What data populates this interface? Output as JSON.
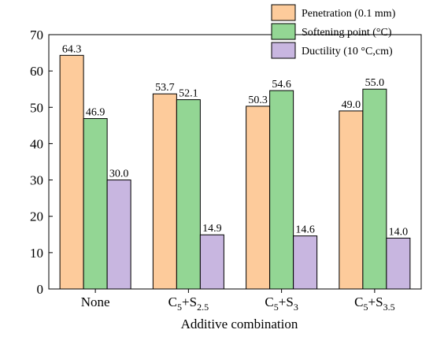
{
  "chart_data": {
    "type": "bar",
    "title": "",
    "xlabel": "Additive combination",
    "ylabel": "",
    "ylim": [
      0,
      70
    ],
    "yticks": [
      0,
      10,
      20,
      30,
      40,
      50,
      60,
      70
    ],
    "grid": false,
    "legend_position": "top-right",
    "categories": [
      "None",
      "C5+S2.5",
      "C5+S3",
      "C5+S3.5"
    ],
    "category_parts": [
      [
        {
          "t": "None",
          "sub": false
        }
      ],
      [
        {
          "t": "C",
          "sub": false
        },
        {
          "t": "5",
          "sub": true
        },
        {
          "t": "+S",
          "sub": false
        },
        {
          "t": "2.5",
          "sub": true
        }
      ],
      [
        {
          "t": "C",
          "sub": false
        },
        {
          "t": "5",
          "sub": true
        },
        {
          "t": "+S",
          "sub": false
        },
        {
          "t": "3",
          "sub": true
        }
      ],
      [
        {
          "t": "C",
          "sub": false
        },
        {
          "t": "5",
          "sub": true
        },
        {
          "t": "+S",
          "sub": false
        },
        {
          "t": "3.5",
          "sub": true
        }
      ]
    ],
    "series": [
      {
        "name": "Penetration (0.1 mm)",
        "color": "#FDCB9B",
        "values": [
          64.3,
          53.7,
          50.3,
          49.0
        ],
        "labels": [
          "64.3",
          "53.7",
          "50.3",
          "49.0"
        ]
      },
      {
        "name": "Softening point (°C)",
        "color": "#93D694",
        "values": [
          46.9,
          52.1,
          54.6,
          55.0
        ],
        "labels": [
          "46.9",
          "52.1",
          "54.6",
          "55.0"
        ]
      },
      {
        "name": "Ductility (10 °C,cm)",
        "color": "#C8B6E0",
        "values": [
          30.0,
          14.9,
          14.6,
          14.0
        ],
        "labels": [
          "30.0",
          "14.9",
          "14.6",
          "14.0"
        ]
      }
    ]
  }
}
